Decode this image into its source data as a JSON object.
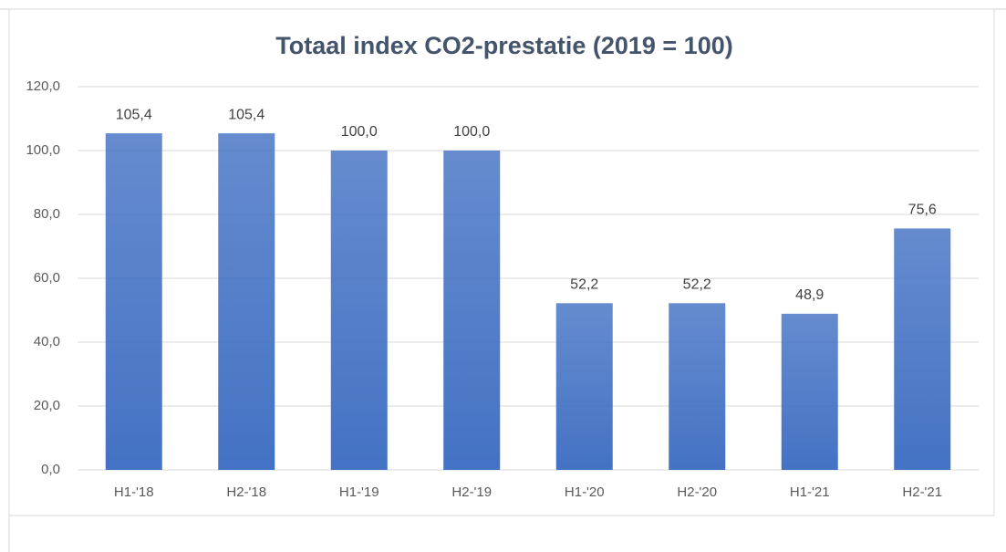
{
  "chart_data": {
    "type": "bar",
    "title": "Totaal index CO2-prestatie (2019 = 100)",
    "categories": [
      "H1-'18",
      "H2-'18",
      "H1-'19",
      "H2-'19",
      "H1-'20",
      "H2-'20",
      "H1-'21",
      "H2-'21"
    ],
    "values": [
      105.4,
      105.4,
      100.0,
      100.0,
      52.2,
      52.2,
      48.9,
      75.6
    ],
    "value_labels": [
      "105,4",
      "105,4",
      "100,0",
      "100,0",
      "52,2",
      "52,2",
      "48,9",
      "75,6"
    ],
    "color": "#4472c4",
    "ylim": [
      0,
      120
    ],
    "yticks": [
      {
        "value": 0,
        "label": "0,0"
      },
      {
        "value": 20,
        "label": "20,0"
      },
      {
        "value": 40,
        "label": "40,0"
      },
      {
        "value": 60,
        "label": "60,0"
      },
      {
        "value": 80,
        "label": "80,0"
      },
      {
        "value": 100,
        "label": "100,0"
      },
      {
        "value": 120,
        "label": "120,0"
      }
    ],
    "grid": true
  }
}
